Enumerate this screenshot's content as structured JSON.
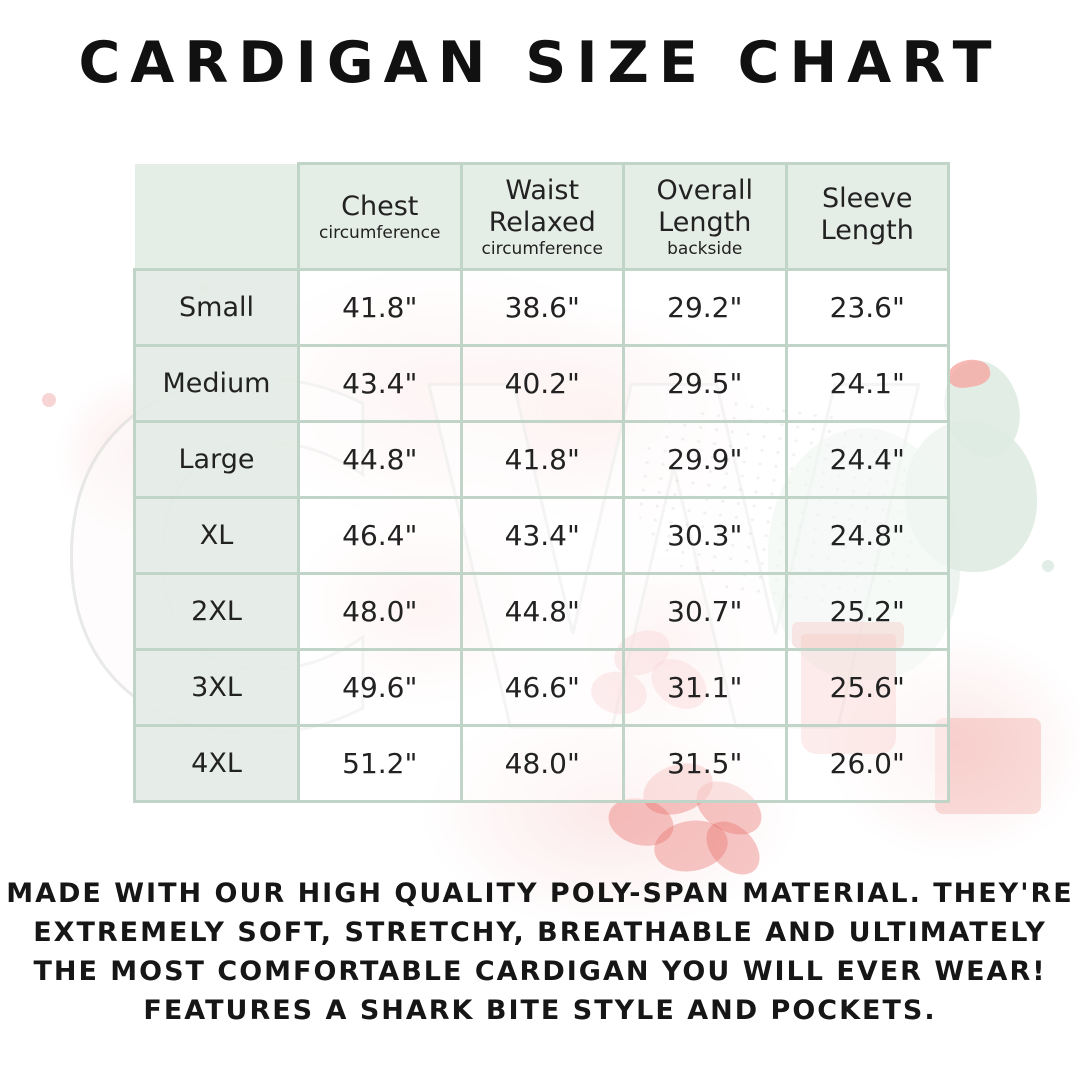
{
  "title": "CARDIGAN SIZE CHART",
  "size_chart": {
    "columns": [
      {
        "label": "Chest",
        "sublabel": "circumference"
      },
      {
        "label": "Waist Relaxed",
        "sublabel": "circumference"
      },
      {
        "label": "Overall Length",
        "sublabel": "backside"
      },
      {
        "label": "Sleeve Length",
        "sublabel": ""
      }
    ],
    "rows": [
      {
        "size": "Small",
        "chest": "41.8\"",
        "waist": "38.6\"",
        "length": "29.2\"",
        "sleeve": "23.6\""
      },
      {
        "size": "Medium",
        "chest": "43.4\"",
        "waist": "40.2\"",
        "length": "29.5\"",
        "sleeve": "24.1\""
      },
      {
        "size": "Large",
        "chest": "44.8\"",
        "waist": "41.8\"",
        "length": "29.9\"",
        "sleeve": "24.4\""
      },
      {
        "size": "XL",
        "chest": "46.4\"",
        "waist": "43.4\"",
        "length": "30.3\"",
        "sleeve": "24.8\""
      },
      {
        "size": "2XL",
        "chest": "48.0\"",
        "waist": "44.8\"",
        "length": "30.7\"",
        "sleeve": "25.2\""
      },
      {
        "size": "3XL",
        "chest": "49.6\"",
        "waist": "46.6\"",
        "length": "31.1\"",
        "sleeve": "25.6\""
      },
      {
        "size": "4XL",
        "chest": "51.2\"",
        "waist": "48.0\"",
        "length": "31.5\"",
        "sleeve": "26.0\""
      }
    ]
  },
  "description": {
    "lines": [
      "MADE WITH OUR HIGH QUALITY POLY-SPAN MATERIAL. THEY'RE",
      "EXTREMELY SOFT, STRETCHY, BREATHABLE AND ULTIMATELY",
      "THE MOST COMFORTABLE CARDIGAN YOU WILL EVER WEAR!",
      "FEATURES A SHARK BITE STYLE AND POCKETS."
    ]
  },
  "watermark": {
    "letters": "CW"
  },
  "colors": {
    "table_border": "#c0d5c7",
    "header_bg": "#e4ece6",
    "text": "#1c1c1c",
    "watermark_pink": "#f9d6d6",
    "watermark_green": "#dfebe3",
    "watermark_red": "#e76e69"
  }
}
